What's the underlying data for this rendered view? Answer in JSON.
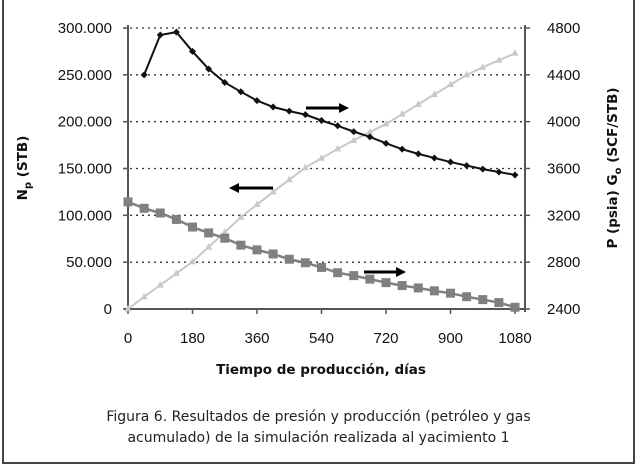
{
  "chart_data": {
    "type": "line",
    "xlabel": "Tiempo de producción, días",
    "ylabel_left": {
      "main": "N",
      "sub": "p",
      "rest": " (STB)"
    },
    "ylabel_right": {
      "p_part": "P (psia) ",
      "main": "G",
      "sub": "o",
      "rest": " (SCF/STB)"
    },
    "xlim": [
      0,
      1080
    ],
    "ylim_left": [
      0,
      300000
    ],
    "ylim_right": [
      2400,
      4800
    ],
    "x_ticks": [
      "0",
      "180",
      "360",
      "540",
      "720",
      "900",
      "1080"
    ],
    "y_ticks_left": [
      "0",
      "50.000",
      "100.000",
      "150.000",
      "200.000",
      "250.000",
      "300.000"
    ],
    "y_ticks_right": [
      "2400",
      "2800",
      "3200",
      "3600",
      "4000",
      "4400",
      "4800"
    ],
    "grid": "horizontal dotted",
    "series": [
      {
        "axis": "right",
        "marker": "diamond",
        "color": "#111111",
        "x": [
          45,
          90,
          135,
          180,
          225,
          270,
          315,
          360,
          405,
          450,
          495,
          540,
          585,
          630,
          675,
          720,
          765,
          810,
          855,
          900,
          945,
          990,
          1035,
          1080
        ],
        "values": [
          4400,
          4740,
          4765,
          4600,
          4450,
          4335,
          4255,
          4180,
          4125,
          4090,
          4060,
          4010,
          3965,
          3915,
          3870,
          3815,
          3765,
          3725,
          3690,
          3655,
          3625,
          3595,
          3570,
          3545
        ]
      },
      {
        "axis": "right",
        "marker": "square",
        "color": "#808080",
        "x": [
          0,
          45,
          90,
          135,
          180,
          225,
          270,
          315,
          360,
          405,
          450,
          495,
          540,
          585,
          630,
          675,
          720,
          765,
          810,
          855,
          900,
          945,
          990,
          1035,
          1080
        ],
        "values": [
          3315,
          3260,
          3220,
          3165,
          3100,
          3050,
          3005,
          2945,
          2905,
          2870,
          2825,
          2795,
          2755,
          2710,
          2685,
          2655,
          2625,
          2600,
          2580,
          2555,
          2535,
          2505,
          2480,
          2455,
          2415
        ]
      },
      {
        "axis": "left",
        "marker": "triangle",
        "color": "#c8c8c8",
        "x": [
          0,
          45,
          90,
          135,
          180,
          225,
          270,
          315,
          360,
          405,
          450,
          495,
          540,
          585,
          630,
          675,
          720,
          765,
          810,
          855,
          900,
          945,
          990,
          1035,
          1080
        ],
        "values": [
          0,
          13000,
          25500,
          38000,
          50500,
          66000,
          82000,
          98000,
          111500,
          125000,
          138000,
          151000,
          161000,
          171000,
          180000,
          189000,
          197500,
          208000,
          218500,
          229000,
          239500,
          250000,
          258000,
          265500,
          273000
        ]
      }
    ],
    "annotations": [
      {
        "type": "arrow",
        "direction": "left",
        "refers_to": "left axis"
      },
      {
        "type": "arrow",
        "direction": "right",
        "refers_to": "right axis"
      },
      {
        "type": "arrow",
        "direction": "right",
        "refers_to": "right axis"
      }
    ]
  },
  "caption": {
    "line1": "Figura 6. Resultados de presión y producción (petróleo y gas",
    "line2": "acumulado) de la simulación realizada al yacimiento 1"
  }
}
